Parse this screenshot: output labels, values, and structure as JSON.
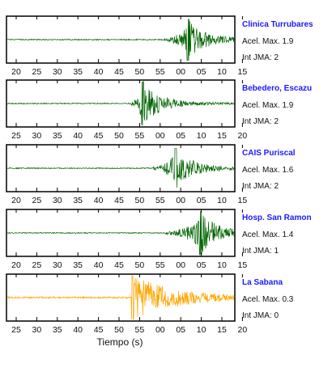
{
  "chart_data": {
    "type": "line",
    "xlabel": "Tiempo (s)",
    "panels": [
      {
        "station": "Clinica Turrubares",
        "accel_label": "Acel. Max. 1.9",
        "intensity_label": "Int JMA: 2",
        "color": "#006400",
        "tick_labels": [
          "20",
          "25",
          "30",
          "35",
          "40",
          "45",
          "50",
          "55",
          "00",
          "05",
          "10",
          "15"
        ],
        "onset_tick_index": 7.2,
        "peak_tick_index": 8.3,
        "signal_amplitude": 0.95
      },
      {
        "station": "Bebedero, Escazu",
        "accel_label": "Acel. Max. 1.9",
        "intensity_label": "Int JMA: 2",
        "color": "#006400",
        "tick_labels": [
          "25",
          "30",
          "35",
          "40",
          "45",
          "50",
          "55",
          "00",
          "05",
          "10",
          "15",
          "20"
        ],
        "onset_tick_index": 5.5,
        "peak_tick_index": 6.1,
        "signal_amplitude": 1.0
      },
      {
        "station": "CAIS Puriscal",
        "accel_label": "Acel. Max. 1.6",
        "intensity_label": "Int JMA: 2",
        "color": "#006400",
        "tick_labels": [
          "20",
          "25",
          "30",
          "35",
          "40",
          "45",
          "50",
          "55",
          "00",
          "05",
          "10",
          "15"
        ],
        "onset_tick_index": 6.6,
        "peak_tick_index": 7.7,
        "signal_amplitude": 0.9
      },
      {
        "station": "Hosp. San Ramon",
        "accel_label": "Acel. Max. 1.4",
        "intensity_label": "Int JMA: 1",
        "color": "#006400",
        "tick_labels": [
          "20",
          "25",
          "30",
          "35",
          "40",
          "45",
          "50",
          "55",
          "00",
          "05",
          "10",
          "15"
        ],
        "onset_tick_index": 7.2,
        "peak_tick_index": 8.9,
        "signal_amplitude": 1.0
      },
      {
        "station": "La Sabana",
        "accel_label": "Acel. Max. 0.3",
        "intensity_label": "Int JMA: 0",
        "color": "#FFA500",
        "tick_labels": [
          "25",
          "30",
          "35",
          "40",
          "45",
          "50",
          "55",
          "00",
          "05",
          "10",
          "15",
          "20"
        ],
        "onset_tick_index": 5.6,
        "peak_tick_index": 5.6,
        "signal_amplitude": 1.0
      }
    ]
  }
}
